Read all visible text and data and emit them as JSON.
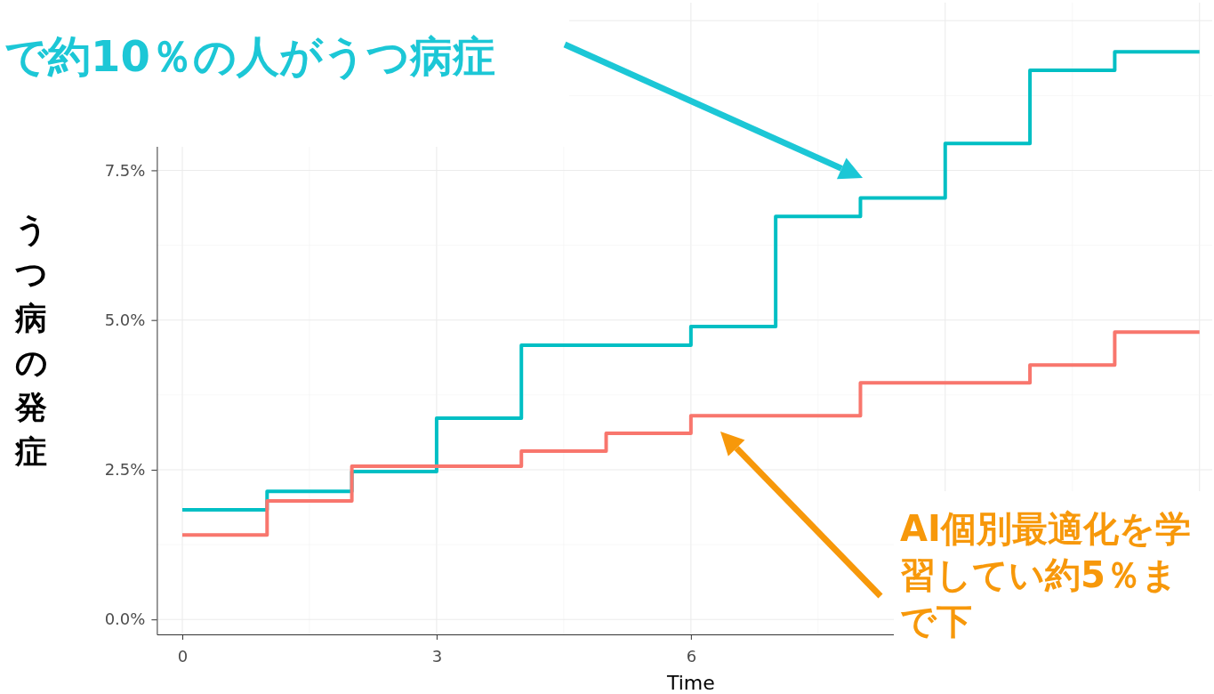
{
  "chart_data": {
    "type": "step",
    "xlabel": "Time",
    "ylabel": "うつ病の発症",
    "x": [
      0,
      1,
      2,
      3,
      4,
      5,
      6,
      7,
      8,
      9,
      10,
      11,
      12
    ],
    "series": [
      {
        "color": "#00bfc4",
        "values": [
          1.83,
          2.14,
          2.47,
          3.36,
          4.58,
          4.58,
          4.89,
          6.73,
          7.04,
          7.95,
          9.17,
          9.48,
          9.48
        ]
      },
      {
        "color": "#f8766d",
        "values": [
          1.41,
          1.98,
          2.56,
          2.56,
          2.81,
          3.11,
          3.4,
          3.4,
          3.95,
          3.95,
          4.25,
          4.8,
          4.8
        ]
      }
    ],
    "xlim": [
      -0.3,
      12.15
    ],
    "ylim": [
      -0.25,
      10.3
    ],
    "xticks": [
      0,
      3,
      6,
      {
        "value": 9,
        "label": null
      },
      {
        "value": 12,
        "label": null
      }
    ],
    "yticks": [
      {
        "value": 0,
        "label": "0.0%"
      },
      {
        "value": 2.5,
        "label": "2.5%"
      },
      {
        "value": 5,
        "label": "5.0%"
      },
      {
        "value": 7.5,
        "label": "7.5%"
      }
    ],
    "grid": true,
    "line_style": "solid",
    "marker": "none",
    "annotations": [
      "で約10％の人がうつ病症",
      "AI個別最適化を学習してい約5％まで下"
    ]
  }
}
